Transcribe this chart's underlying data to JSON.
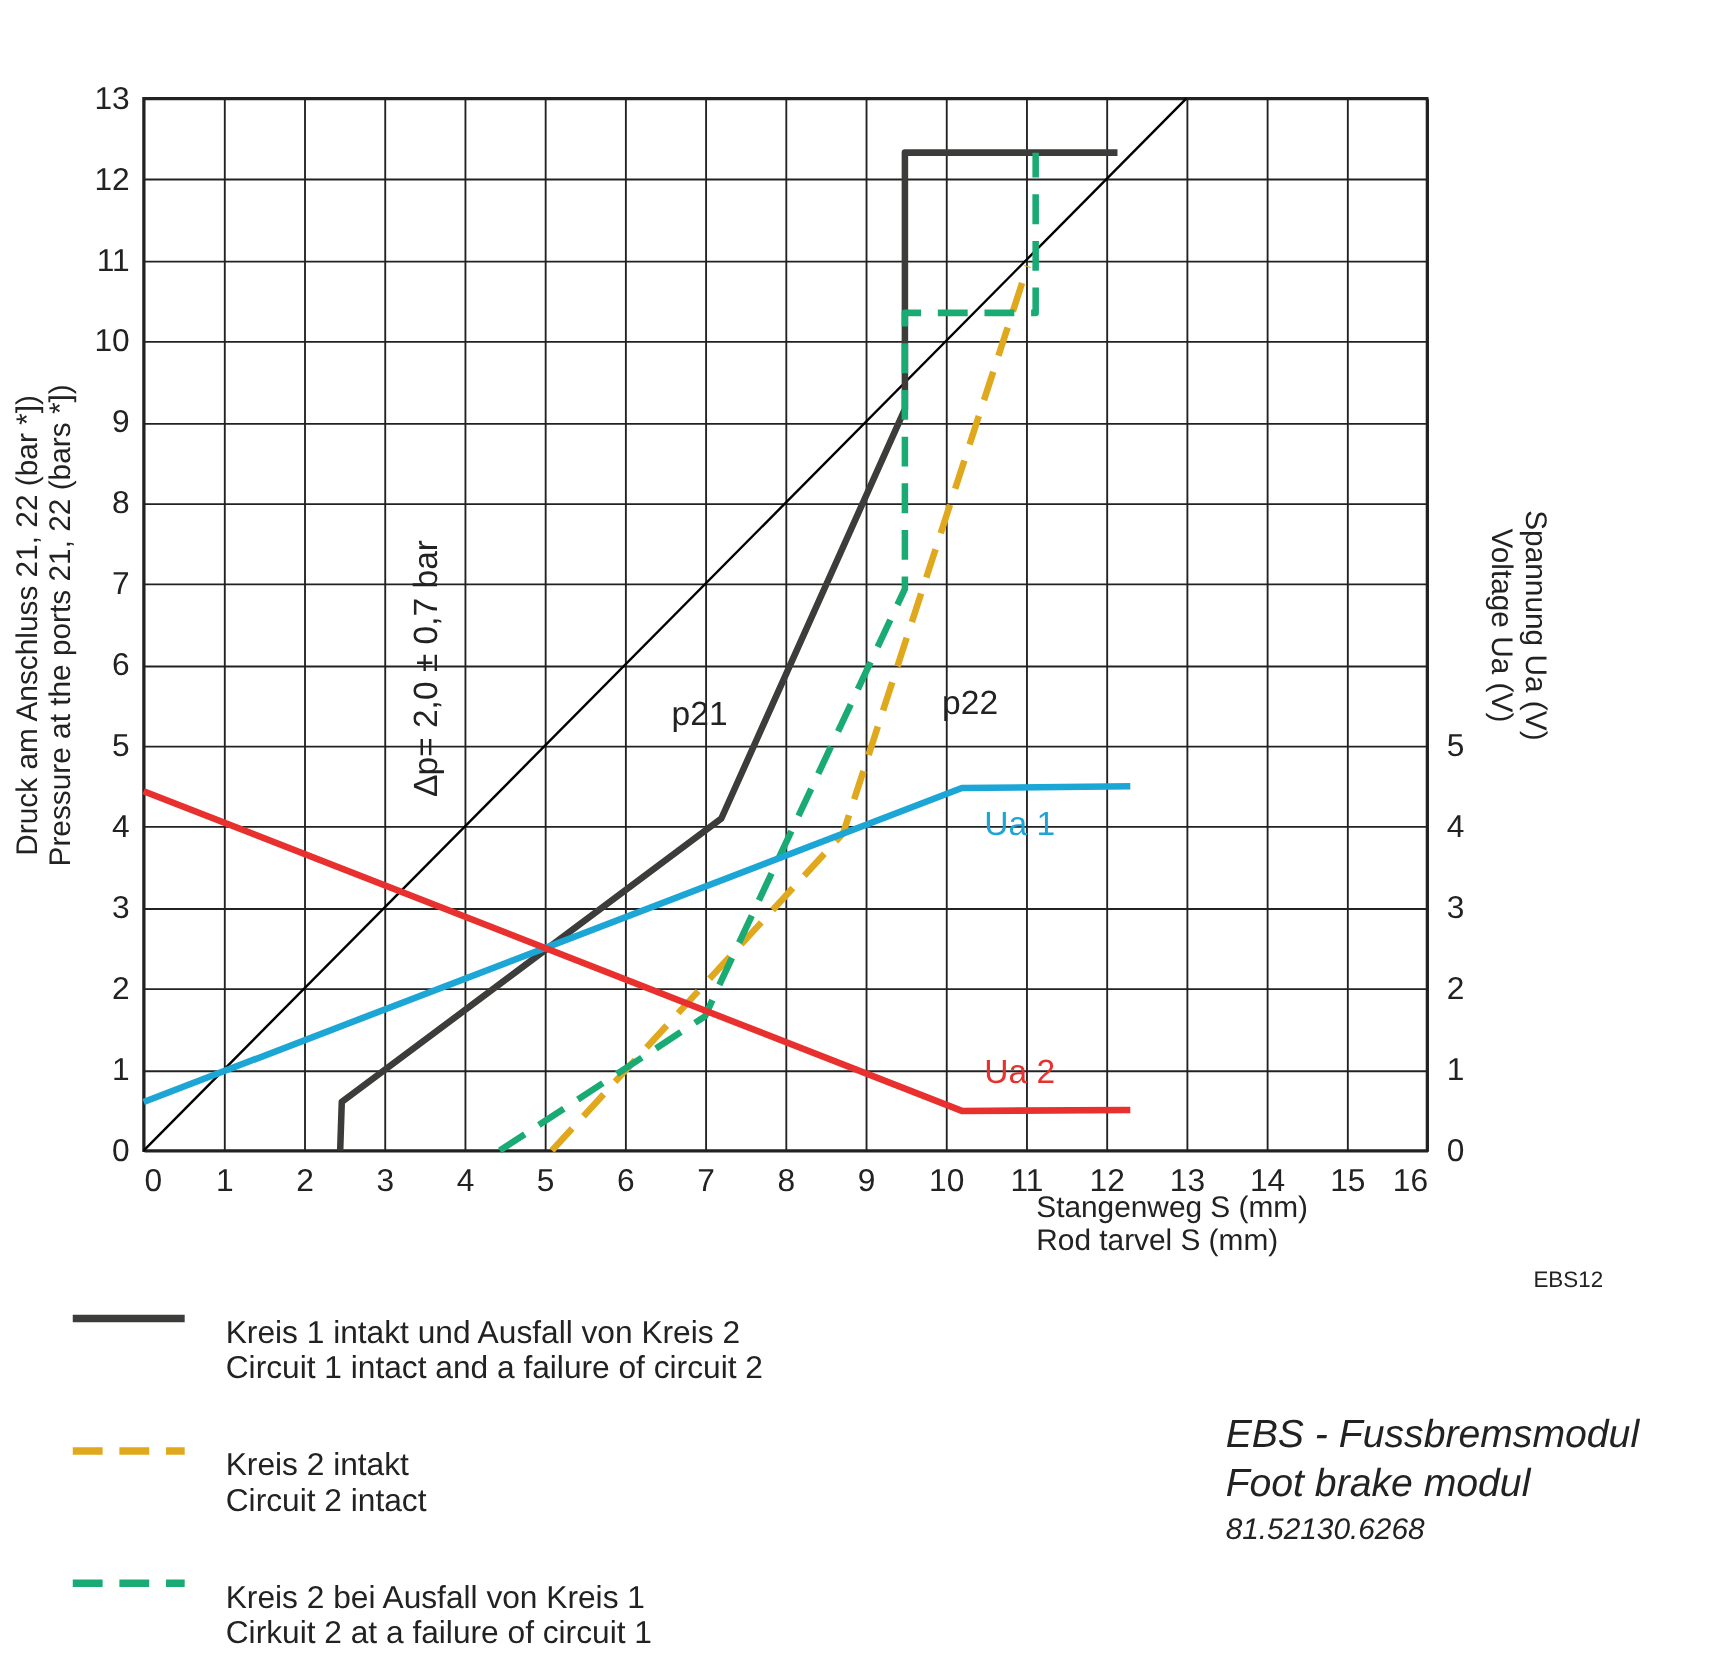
{
  "chart_data": {
    "type": "line",
    "title": "EBS - Fussbremsmodul",
    "subtitle": "Foot brake modul",
    "xlabel": "Stangenweg   S  (mm)\nRod tarvel       S  (mm)",
    "ylabel": "Druck am Anschluss   21, 22  (bar *])\nPressure at the ports   21, 22  (bars *])",
    "y2label": "Spannung Ua  (V)\nVoltage       Ua  (V)",
    "xlim": [
      0,
      16
    ],
    "xticks": [
      0,
      1,
      2,
      3,
      4,
      5,
      6,
      7,
      8,
      9,
      10,
      11,
      12,
      13,
      14,
      15,
      16
    ],
    "ylim": [
      0,
      13
    ],
    "yticks": [
      0,
      1,
      2,
      3,
      4,
      5,
      6,
      7,
      8,
      9,
      10,
      11,
      12,
      13
    ],
    "y2lim": [
      0,
      13
    ],
    "y2ticks": [
      0,
      1,
      2,
      3,
      4,
      5
    ],
    "grid": true,
    "legend": "bottom",
    "series": [
      {
        "color": "#000000",
        "line_style": "solid",
        "x": [
          0,
          13
        ],
        "values": [
          0,
          13
        ]
      },
      {
        "name": "Kreis 1 intakt und Ausfall von Kreis 2\nCircuit 1 intact and a failure of circuit 2",
        "color": "#3c3d3a",
        "line_style": "solid",
        "x": [
          2.45,
          2.47,
          7.2,
          9.49,
          9.49,
          12.14
        ],
        "values": [
          0,
          0.6,
          4.1,
          9.16,
          12.33,
          12.33
        ]
      },
      {
        "name": "Kreis 2 intakt\nCircuit 2 intact",
        "color": "#e0a81c",
        "line_style": "dashed",
        "x": [
          5.09,
          8.72,
          11.02
        ],
        "values": [
          0,
          3.92,
          10.93
        ]
      },
      {
        "name": "Kreis 2 bei Ausfall von Kreis 1\nCirkuit 2 at a failure of circuit 1",
        "color": "#1aab74",
        "line_style": "dashed",
        "x": [
          4.44,
          7.0,
          7.14,
          9.49,
          9.49,
          11.12,
          11.12
        ],
        "values": [
          0,
          1.66,
          1.97,
          6.94,
          10.35,
          10.35,
          12.33
        ]
      },
      {
        "name": "Ua 1",
        "color": "#1ca6d6",
        "line_style": "solid",
        "axis": "y2",
        "x": [
          0,
          10.2,
          12.3
        ],
        "values": [
          0.6,
          4.48,
          4.5
        ]
      },
      {
        "name": "Ua 2",
        "color": "#e8312f",
        "line_style": "solid",
        "axis": "y2",
        "x": [
          0,
          10.2,
          12.3
        ],
        "values": [
          4.44,
          0.49,
          0.5
        ]
      }
    ],
    "annotations": [
      "∆p= 2,0 ± 0,7 bar",
      "p21",
      "p22",
      "EBS12",
      "81.52130.6268"
    ]
  }
}
